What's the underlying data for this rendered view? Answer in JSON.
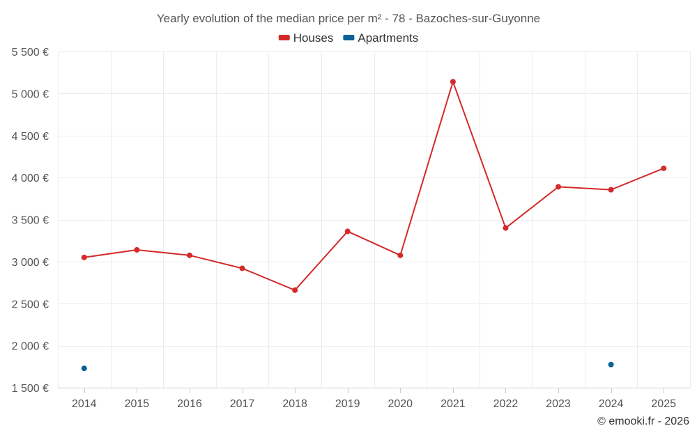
{
  "chart_data": {
    "type": "line",
    "title": "Yearly evolution of the median price per m² - 78 - Bazoches-sur-Guyonne",
    "categories": [
      "2014",
      "2015",
      "2016",
      "2017",
      "2018",
      "2019",
      "2020",
      "2021",
      "2022",
      "2023",
      "2024",
      "2025"
    ],
    "series": [
      {
        "name": "Houses",
        "color": "#d32a2a",
        "values": [
          3050,
          3140,
          3075,
          2920,
          2660,
          3360,
          3075,
          5140,
          3400,
          3890,
          3855,
          4110
        ]
      },
      {
        "name": "Apartments",
        "color": "#0a6196",
        "values": [
          1730,
          null,
          null,
          null,
          null,
          null,
          null,
          null,
          null,
          null,
          1775,
          null
        ]
      }
    ],
    "ylim": [
      1500,
      5500
    ],
    "yticks": [
      1500,
      2000,
      2500,
      3000,
      3500,
      4000,
      4500,
      5000,
      5500
    ],
    "ytick_labels": [
      "1 500 €",
      "2 000 €",
      "2 500 €",
      "3 000 €",
      "3 500 €",
      "4 000 €",
      "4 500 €",
      "5 000 €",
      "5 500 €"
    ],
    "legend_position": "top-center",
    "grid": true,
    "xlabel": "",
    "ylabel": ""
  },
  "credit": "© emooki.fr - 2026"
}
